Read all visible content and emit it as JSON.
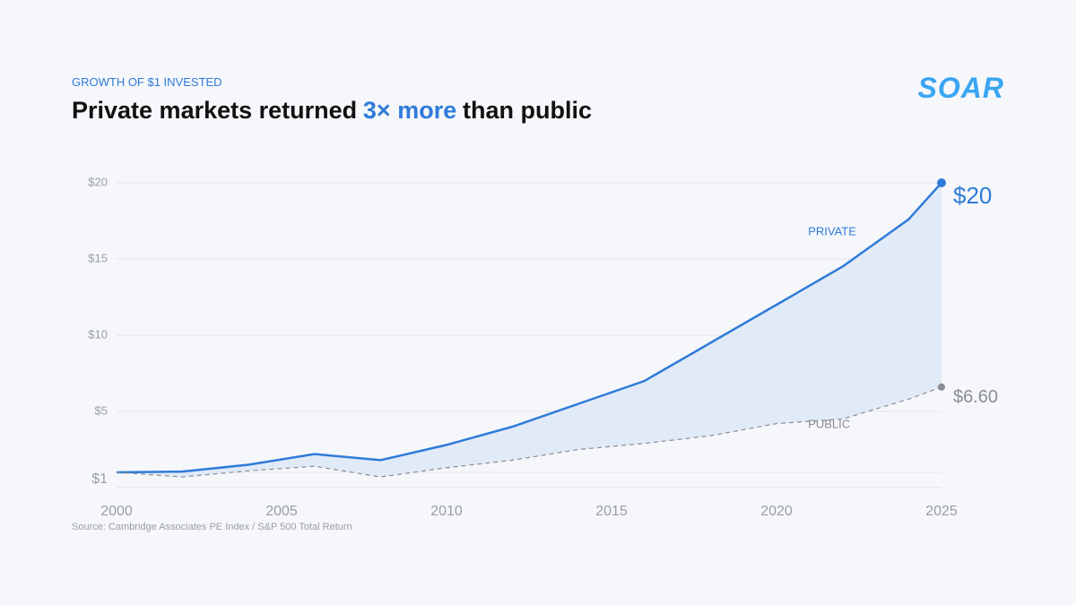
{
  "kicker": "GROWTH OF $1 INVESTED",
  "title": {
    "before": "Private markets returned",
    "highlight": "3× more",
    "after": "than public"
  },
  "logo": "SOAR",
  "source": "Source: Cambridge Associates PE Index / S&P 500 Total Return",
  "chart_data": {
    "type": "line",
    "x": [
      2000,
      2002,
      2004,
      2006,
      2008,
      2010,
      2012,
      2014,
      2016,
      2018,
      2020,
      2022,
      2024,
      2025
    ],
    "series": [
      {
        "name": "PRIVATE",
        "color": "#2f7bd9",
        "dashed": false,
        "values": [
          1.0,
          1.05,
          1.5,
          2.2,
          1.8,
          2.8,
          4.0,
          5.5,
          7.0,
          9.5,
          12.0,
          14.5,
          17.6,
          20
        ],
        "value_labels": [
          null,
          null,
          null,
          null,
          null,
          null,
          null,
          null,
          null,
          null,
          null,
          null,
          null,
          "$20"
        ]
      },
      {
        "name": "PUBLIC",
        "color": "#8a8d94",
        "dashed": true,
        "values": [
          1.0,
          0.7,
          1.1,
          1.4,
          0.7,
          1.3,
          1.8,
          2.5,
          2.9,
          3.4,
          4.2,
          4.5,
          5.8,
          6.6
        ],
        "value_labels": [
          null,
          null,
          null,
          null,
          null,
          null,
          null,
          null,
          null,
          null,
          null,
          null,
          null,
          "$6.60"
        ]
      }
    ],
    "fill_between": true,
    "xlim": [
      2000,
      2025
    ],
    "xticks": [
      2000,
      2005,
      2010,
      2015,
      2020,
      2025
    ],
    "ylim": [
      0,
      20
    ],
    "yticks": [
      {
        "value": 1,
        "label": "$1"
      },
      {
        "value": 5,
        "label": "$5"
      },
      {
        "value": 10,
        "label": "$10"
      },
      {
        "value": 15,
        "label": "$15"
      },
      {
        "value": 20,
        "label": "$20"
      }
    ],
    "grid": true
  }
}
